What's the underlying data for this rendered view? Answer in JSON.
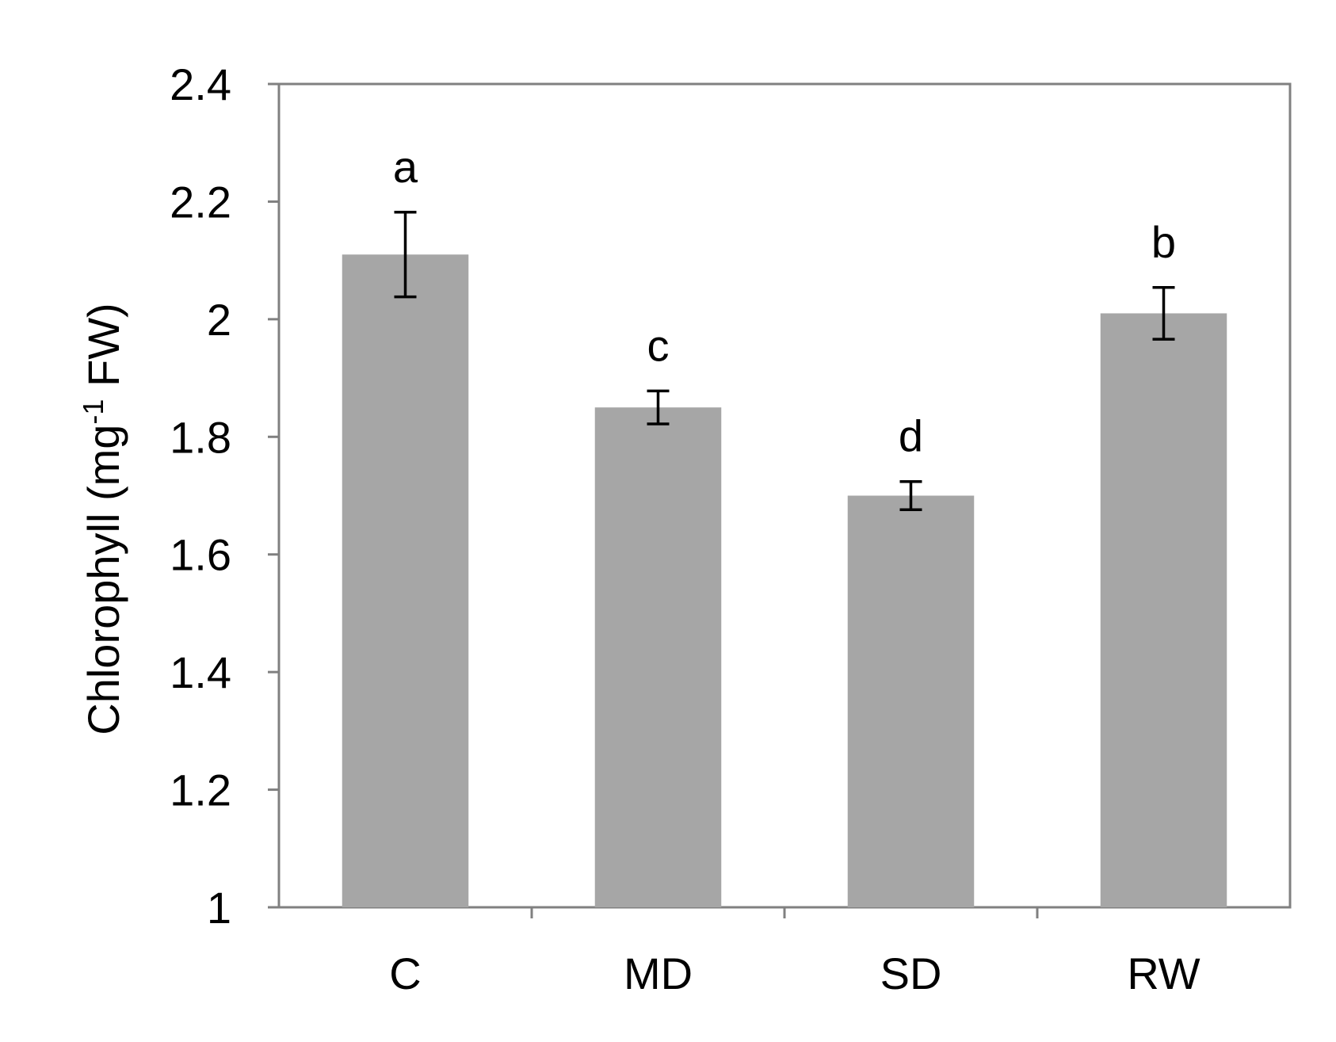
{
  "chart_data": {
    "type": "bar",
    "title": "",
    "xlabel": "",
    "ylabel": "Chlorophyll (mg",
    "ylabel_sup": "-1",
    "ylabel_tail": " FW)",
    "ylim": [
      1,
      2.4
    ],
    "yticks": [
      "1",
      "1.2",
      "1.4",
      "1.6",
      "1.8",
      "2",
      "2.2",
      "2.4"
    ],
    "ytick_values": [
      1,
      1.2,
      1.4,
      1.6,
      1.8,
      2,
      2.2,
      2.4
    ],
    "categories": [
      "C",
      "MD",
      "SD",
      "RW"
    ],
    "values": [
      2.11,
      1.85,
      1.7,
      2.01
    ],
    "errors": [
      0.072,
      0.028,
      0.024,
      0.044
    ],
    "letters": [
      "a",
      "c",
      "d",
      "b"
    ],
    "grid": false,
    "colors": {
      "bar": "#a6a6a6",
      "axis": "#808080",
      "error_bar": "#000000"
    }
  }
}
